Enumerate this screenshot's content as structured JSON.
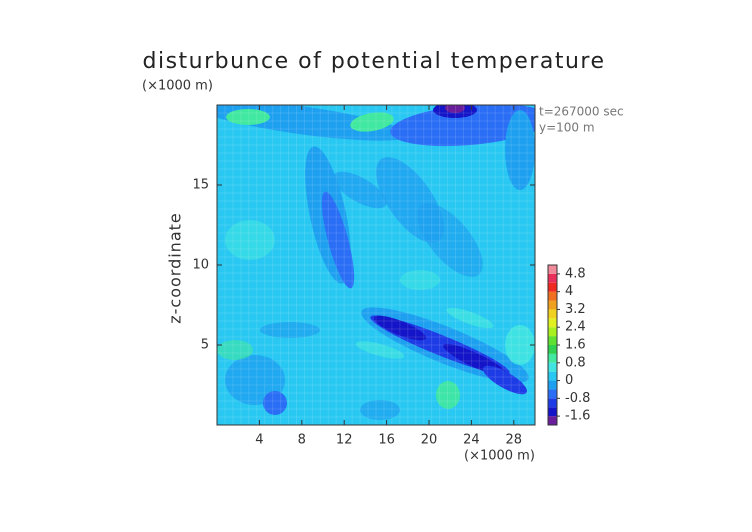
{
  "chart_data": {
    "type": "contour",
    "title": "disturbunce of potential temperature",
    "y_unit": "(×1000 m)",
    "x_unit": "(×1000 m)",
    "ylabel": "z-coordinate",
    "annotations": [
      "t=267000 sec",
      "y=100 m"
    ],
    "xlim": [
      0,
      30
    ],
    "xticks": [
      4,
      8,
      12,
      16,
      20,
      24,
      28
    ],
    "ylim": [
      0,
      20
    ],
    "yticks": [
      5,
      10,
      15
    ],
    "colorbar": {
      "levels": [
        -2,
        -1.6,
        -1.2,
        -0.8,
        -0.4,
        0,
        0.4,
        0.8,
        1.2,
        1.6,
        2,
        2.4,
        2.8,
        3.2,
        3.6,
        4,
        4.4,
        4.8,
        5.2
      ],
      "colors": [
        "#6a1e9c",
        "#1414c8",
        "#1e3ce6",
        "#2a6ef5",
        "#1ea0f0",
        "#28c8f2",
        "#40e4e0",
        "#40e8a0",
        "#30d050",
        "#60e030",
        "#a8f020",
        "#e0f020",
        "#f0d020",
        "#f0a020",
        "#f07020",
        "#f02a20",
        "#e8305a",
        "#f08a9a"
      ],
      "ticks": [
        -1.6,
        -0.8,
        0,
        0.8,
        1.6,
        2.4,
        3.2,
        4,
        4.8
      ]
    }
  }
}
